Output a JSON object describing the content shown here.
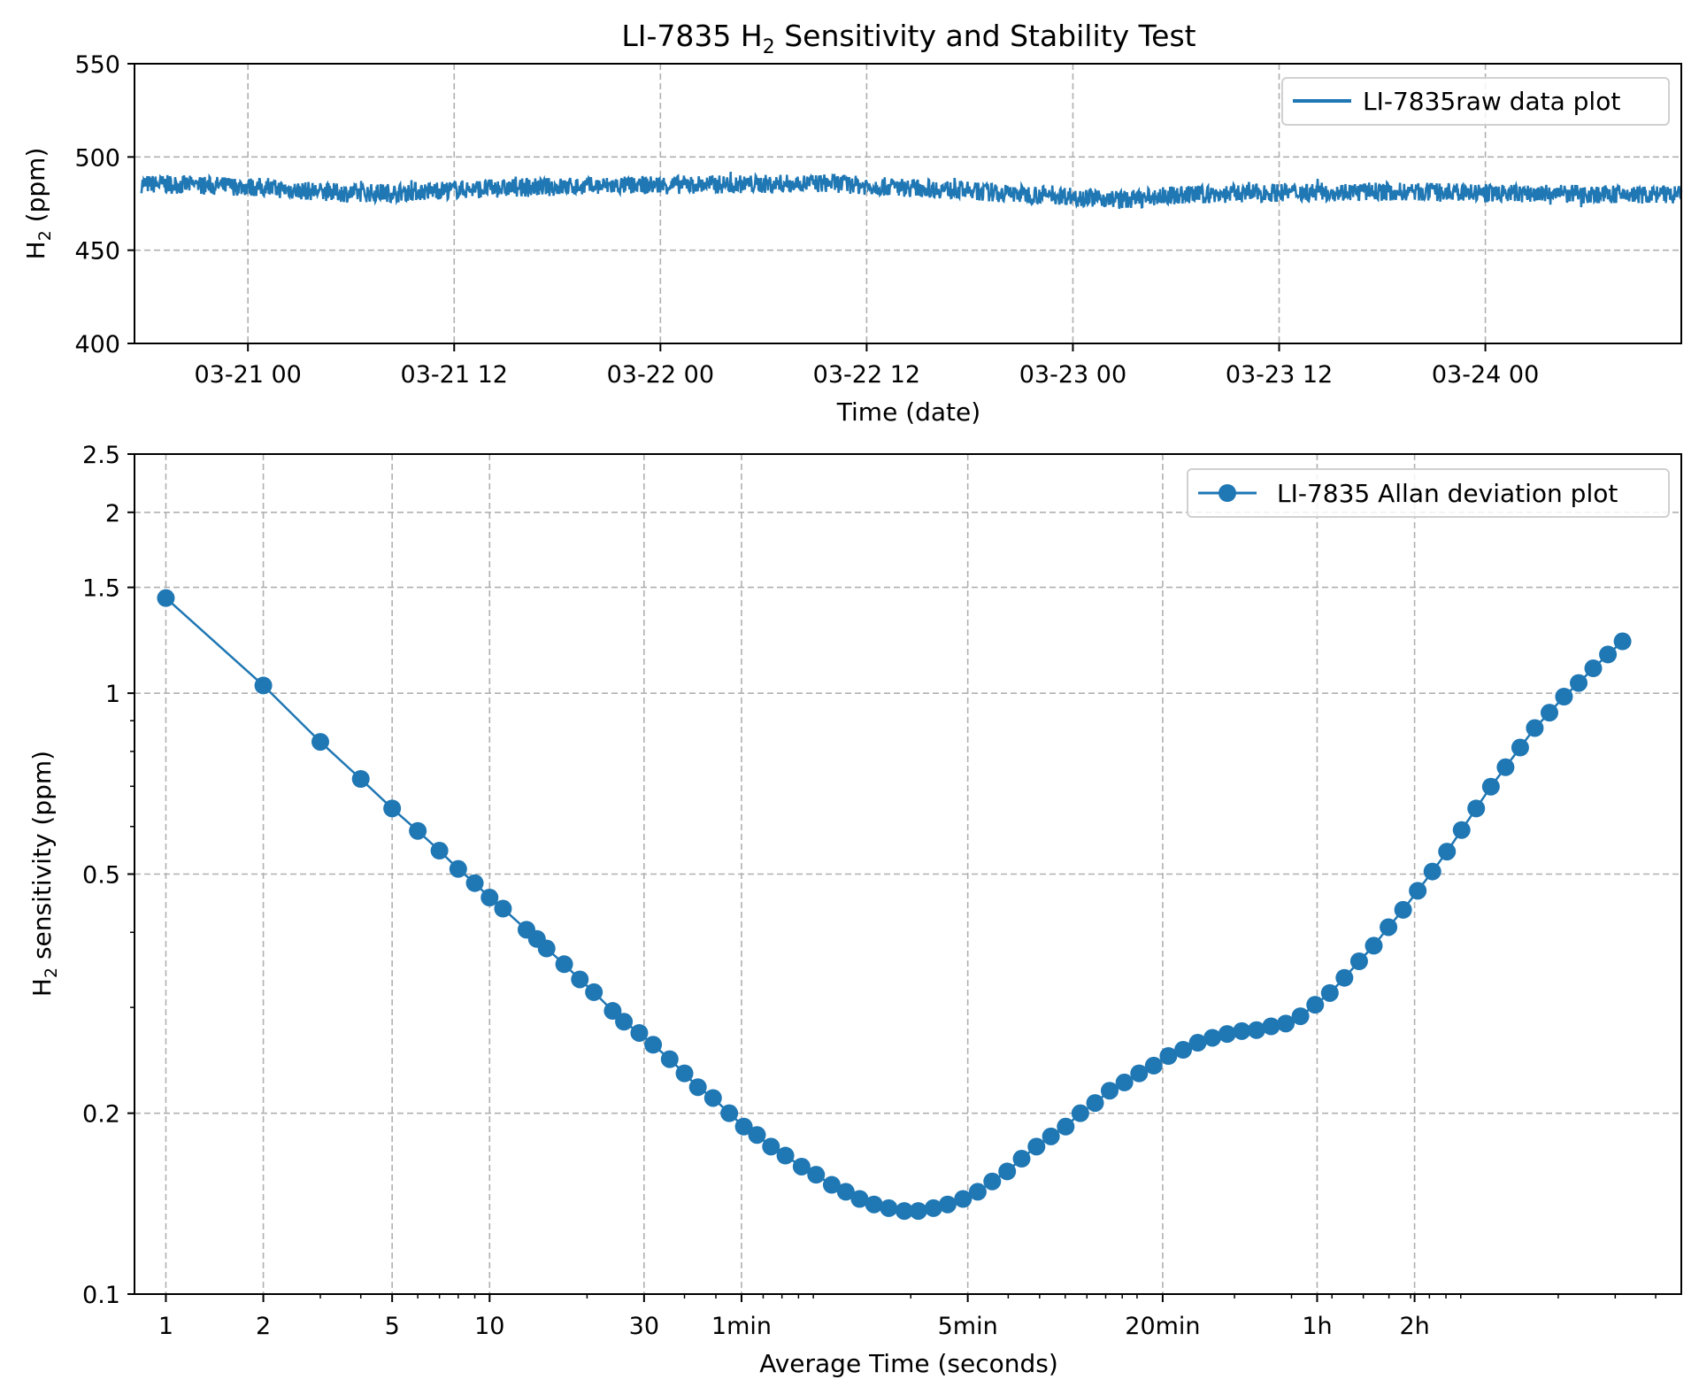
{
  "title": "LI-7835 H",
  "title_sub": "2",
  "title_rest": " Sensitivity and Stability Test",
  "chart_data": [
    {
      "type": "line",
      "name": "raw-data",
      "title": "LI-7835 H2 Sensitivity and Stability Test",
      "xlabel": "Time (date)",
      "ylabel_main": "H",
      "ylabel_sub": "2",
      "ylabel_rest": " (ppm)",
      "ylim": [
        400,
        550
      ],
      "xlim_hours_from_03-21_00": [
        -6.6,
        83.4
      ],
      "yticks": [
        400,
        450,
        500,
        550
      ],
      "xticks": [
        {
          "hours": 0,
          "label": "03-21 00"
        },
        {
          "hours": 12,
          "label": "03-21 12"
        },
        {
          "hours": 24,
          "label": "03-22 00"
        },
        {
          "hours": 36,
          "label": "03-22 12"
        },
        {
          "hours": 48,
          "label": "03-23 00"
        },
        {
          "hours": 60,
          "label": "03-23 12"
        },
        {
          "hours": 72,
          "label": "03-24 00"
        }
      ],
      "grid": true,
      "legend": {
        "label": "LI-7835raw data plot",
        "placement": "top-right"
      },
      "color": "#1f77b4",
      "noise_band_ppm": 5,
      "series": [
        {
          "name": "LI-7835 raw data plot",
          "hours": [
            -6.2,
            -3,
            0,
            3,
            6,
            9,
            12,
            18,
            24,
            30,
            34,
            36,
            40,
            44,
            48,
            51,
            54,
            60,
            66,
            72,
            78,
            83.4
          ],
          "values": [
            485.5,
            485,
            484,
            482,
            480.5,
            481,
            482.5,
            484,
            485,
            485.5,
            486,
            484.5,
            483,
            480.5,
            479,
            477,
            479.5,
            481,
            481.5,
            480.5,
            480,
            479.5
          ]
        }
      ]
    },
    {
      "type": "line",
      "name": "allan-deviation",
      "xlabel": "Average Time (seconds)",
      "ylabel_main": "H",
      "ylabel_sub": "2",
      "ylabel_rest": " sensitivity (ppm)",
      "xscale": "log",
      "yscale": "log",
      "xlim": [
        0.8,
        48000
      ],
      "ylim": [
        0.1,
        2.5
      ],
      "yticks": [
        {
          "v": 0.1,
          "label": "0.1"
        },
        {
          "v": 0.2,
          "label": "0.2"
        },
        {
          "v": 0.5,
          "label": "0.5"
        },
        {
          "v": 1,
          "label": "1"
        },
        {
          "v": 1.5,
          "label": "1.5"
        },
        {
          "v": 2,
          "label": "2"
        },
        {
          "v": 2.5,
          "label": "2.5"
        }
      ],
      "xticks": [
        {
          "v": 1,
          "label": "1"
        },
        {
          "v": 2,
          "label": "2"
        },
        {
          "v": 5,
          "label": "5"
        },
        {
          "v": 10,
          "label": "10"
        },
        {
          "v": 30,
          "label": "30"
        },
        {
          "v": 60,
          "label": "1min"
        },
        {
          "v": 300,
          "label": "5min"
        },
        {
          "v": 1200,
          "label": "20min"
        },
        {
          "v": 3600,
          "label": "1h"
        },
        {
          "v": 7200,
          "label": "2h"
        }
      ],
      "grid": true,
      "legend": {
        "label": "LI-7835 Allan deviation plot",
        "placement": "top-right"
      },
      "color": "#1f77b4",
      "series": [
        {
          "name": "LI-7835 Allan deviation plot",
          "x": [
            1,
            2,
            3,
            4,
            5,
            6,
            7,
            8,
            9,
            10,
            11,
            13,
            14,
            15,
            17,
            19,
            21,
            24,
            26,
            29,
            32,
            36,
            40,
            44,
            49,
            55,
            61,
            67,
            74,
            82,
            92,
            102,
            114,
            126,
            139,
            154,
            171,
            191,
            211,
            235,
            260,
            290,
            322,
            357,
            397,
            440,
            489,
            542,
            602,
            668,
            742,
            823,
            914,
            1015,
            1126,
            1250,
            1388,
            1540,
            1709,
            1898,
            2107,
            2339,
            2595,
            2881,
            3197,
            3550,
            3940,
            4372,
            4853,
            5387,
            5980,
            6636,
            7363,
            8173,
            9068,
            10060,
            11160,
            12390,
            13750,
            15260,
            16930,
            18790,
            20840,
            23130,
            25660,
            28480,
            31600
          ],
          "y": [
            1.44,
            1.03,
            0.83,
            0.72,
            0.643,
            0.59,
            0.547,
            0.51,
            0.483,
            0.457,
            0.438,
            0.404,
            0.39,
            0.376,
            0.354,
            0.334,
            0.318,
            0.296,
            0.284,
            0.272,
            0.26,
            0.246,
            0.233,
            0.221,
            0.212,
            0.2,
            0.19,
            0.184,
            0.176,
            0.17,
            0.163,
            0.158,
            0.152,
            0.148,
            0.144,
            0.141,
            0.139,
            0.1375,
            0.1375,
            0.139,
            0.141,
            0.144,
            0.148,
            0.154,
            0.16,
            0.168,
            0.176,
            0.183,
            0.19,
            0.2,
            0.208,
            0.218,
            0.225,
            0.233,
            0.24,
            0.249,
            0.255,
            0.262,
            0.267,
            0.271,
            0.274,
            0.275,
            0.279,
            0.282,
            0.29,
            0.303,
            0.317,
            0.336,
            0.358,
            0.38,
            0.408,
            0.436,
            0.469,
            0.505,
            0.545,
            0.592,
            0.643,
            0.699,
            0.753,
            0.812,
            0.875,
            0.928,
            0.987,
            1.04,
            1.1,
            1.16,
            1.22
          ]
        }
      ]
    }
  ]
}
